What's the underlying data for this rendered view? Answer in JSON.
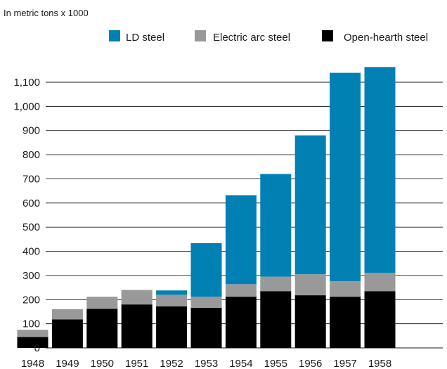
{
  "chart_data": {
    "type": "bar",
    "stacked": true,
    "unit_label": "In metric tons x 1000",
    "categories": [
      "1948",
      "1949",
      "1950",
      "1951",
      "1952",
      "1953",
      "1954",
      "1955",
      "1956",
      "1957",
      "1958"
    ],
    "series": [
      {
        "name": "Open-hearth steel",
        "color": "#000000",
        "values": [
          45,
          118,
          162,
          180,
          172,
          166,
          212,
          235,
          218,
          212,
          235
        ]
      },
      {
        "name": "Electric arc steel",
        "color": "#999999",
        "values": [
          30,
          42,
          50,
          60,
          48,
          46,
          52,
          60,
          87,
          64,
          76
        ]
      },
      {
        "name": "LD steel",
        "color": "#0080b3",
        "values": [
          0,
          0,
          0,
          0,
          18,
          222,
          368,
          425,
          575,
          863,
          852
        ]
      }
    ],
    "legend_order": [
      "LD steel",
      "Electric arc steel",
      "Open-hearth steel"
    ],
    "legend_position": "top-right",
    "ylim": [
      0,
      1150
    ],
    "yticks": [
      0,
      100,
      200,
      300,
      400,
      500,
      600,
      700,
      800,
      900,
      1000,
      1100
    ],
    "ytick_labels": [
      "0",
      "100",
      "200",
      "300",
      "400",
      "500",
      "600",
      "700",
      "800",
      "900",
      "1,000",
      "1,100"
    ],
    "grid": "horizontal"
  }
}
